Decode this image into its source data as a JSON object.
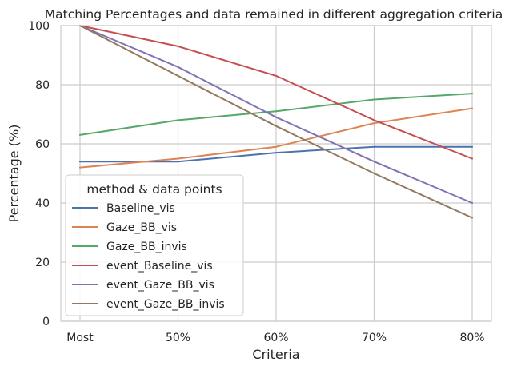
{
  "chart_data": {
    "type": "line",
    "title": "Matching Percentages and data remained in different aggregation criteria",
    "xlabel": "Criteria",
    "ylabel": "Percentage (%)",
    "categories": [
      "Most",
      "50%",
      "60%",
      "70%",
      "80%"
    ],
    "ylim": [
      0,
      100
    ],
    "yticks": [
      0,
      20,
      40,
      60,
      80,
      100
    ],
    "grid": true,
    "legend": {
      "title": "method & data points",
      "placement": "lower-left"
    },
    "series": [
      {
        "name": "Baseline_vis",
        "color": "#4c72b0",
        "values": [
          54,
          54,
          57,
          59,
          59
        ]
      },
      {
        "name": "Gaze_BB_vis",
        "color": "#dd8452",
        "values": [
          52,
          55,
          59,
          67,
          72
        ]
      },
      {
        "name": "Gaze_BB_invis",
        "color": "#55a868",
        "values": [
          63,
          68,
          71,
          75,
          77
        ]
      },
      {
        "name": "event_Baseline_vis",
        "color": "#c44e52",
        "values": [
          100,
          93,
          83,
          68,
          55
        ]
      },
      {
        "name": "event_Gaze_BB_vis",
        "color": "#8172b3",
        "values": [
          100,
          86,
          69,
          54,
          40
        ]
      },
      {
        "name": "event_Gaze_BB_invis",
        "color": "#937860",
        "values": [
          100,
          83,
          66,
          50,
          35
        ]
      }
    ]
  }
}
